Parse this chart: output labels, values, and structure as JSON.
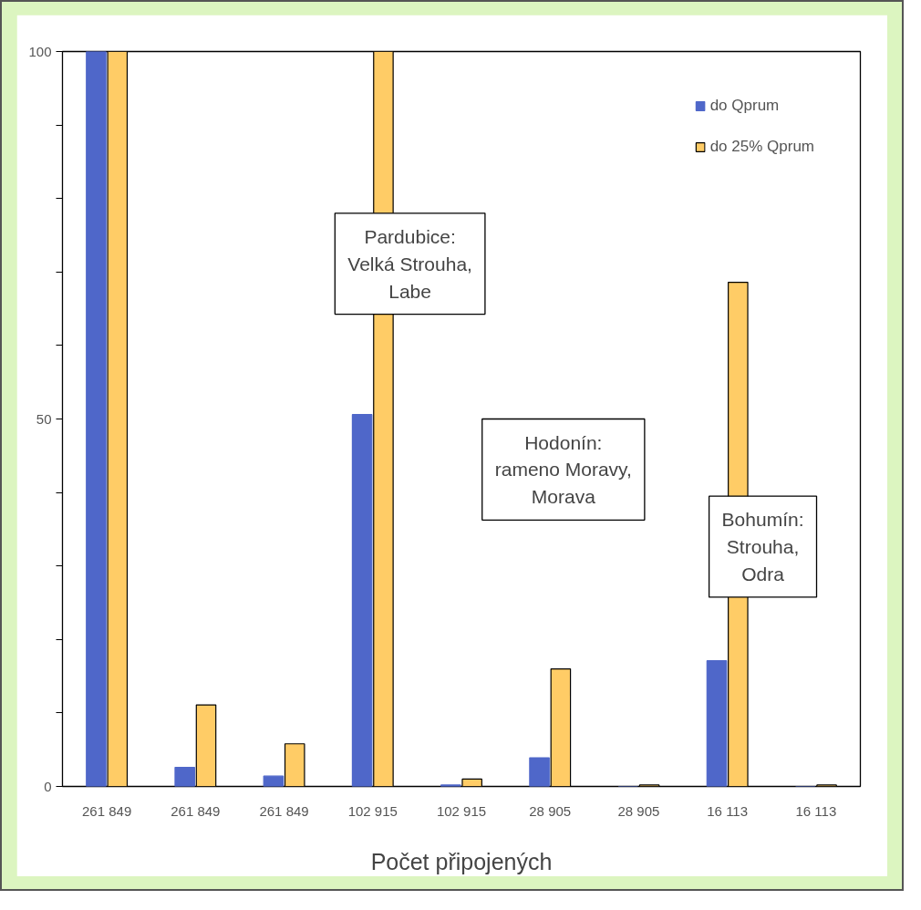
{
  "chart_data": {
    "type": "bar",
    "categories": [
      "261 849",
      "261 849",
      "261 849",
      "102 915",
      "102 915",
      "28 905",
      "28 905",
      "16 113",
      "16 113"
    ],
    "xlabel": "Počet připojených",
    "series": [
      {
        "name": "do Qprum",
        "color": "#4f67c9",
        "values": [
          100,
          2.6,
          1.4,
          50.6,
          0.2,
          3.9,
          0,
          17.1,
          0
        ]
      },
      {
        "name": "do 25% Qprum",
        "color": "#ffcc66",
        "values": [
          100,
          11.1,
          5.8,
          100,
          1,
          16,
          0.2,
          68.6,
          0.2
        ]
      }
    ],
    "ylim": [
      0,
      100
    ],
    "yticks": [
      0,
      {
        "value": 10,
        "label": null
      },
      {
        "value": 20,
        "label": null
      },
      {
        "value": 30,
        "label": null
      },
      {
        "value": 40,
        "label": null
      },
      50,
      {
        "value": 60,
        "label": null
      },
      {
        "value": 70,
        "label": null
      },
      {
        "value": 80,
        "label": null
      },
      {
        "value": 90,
        "label": null
      },
      100
    ],
    "annotations": [
      "Pardubice:\nVelká Strouha,\nLabe",
      "Hodonín:\nrameno Moravy,\nMorava",
      "Bohumín:\nStrouha,\nOdra"
    ],
    "legend": "top right",
    "grid": false
  }
}
